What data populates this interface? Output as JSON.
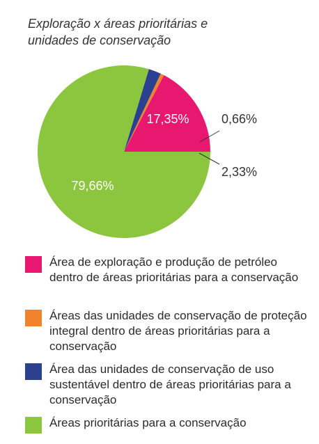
{
  "chart_data": {
    "type": "pie",
    "title": "Exploração x áreas prioritárias e unidades de conservação",
    "series": [
      {
        "label": "17,35%",
        "value": 17.35,
        "color": "#e8176f",
        "legend": "Área de exploração e produção de petróleo dentro de áreas prioritárias para a conservação"
      },
      {
        "label": "0,66%",
        "value": 0.66,
        "color": "#f0832b",
        "legend": "Áreas das unidades de conservação de proteção integral dentro de áreas prioritárias para a conservação"
      },
      {
        "label": "2,33%",
        "value": 2.33,
        "color": "#2b4190",
        "legend": "Área das unidades de conservação de uso sustentável dentro de áreas prioritárias para a conservação"
      },
      {
        "label": "79,66%",
        "value": 79.66,
        "color": "#8cc63f",
        "legend": "Áreas prioritárias para a conservação"
      }
    ]
  }
}
